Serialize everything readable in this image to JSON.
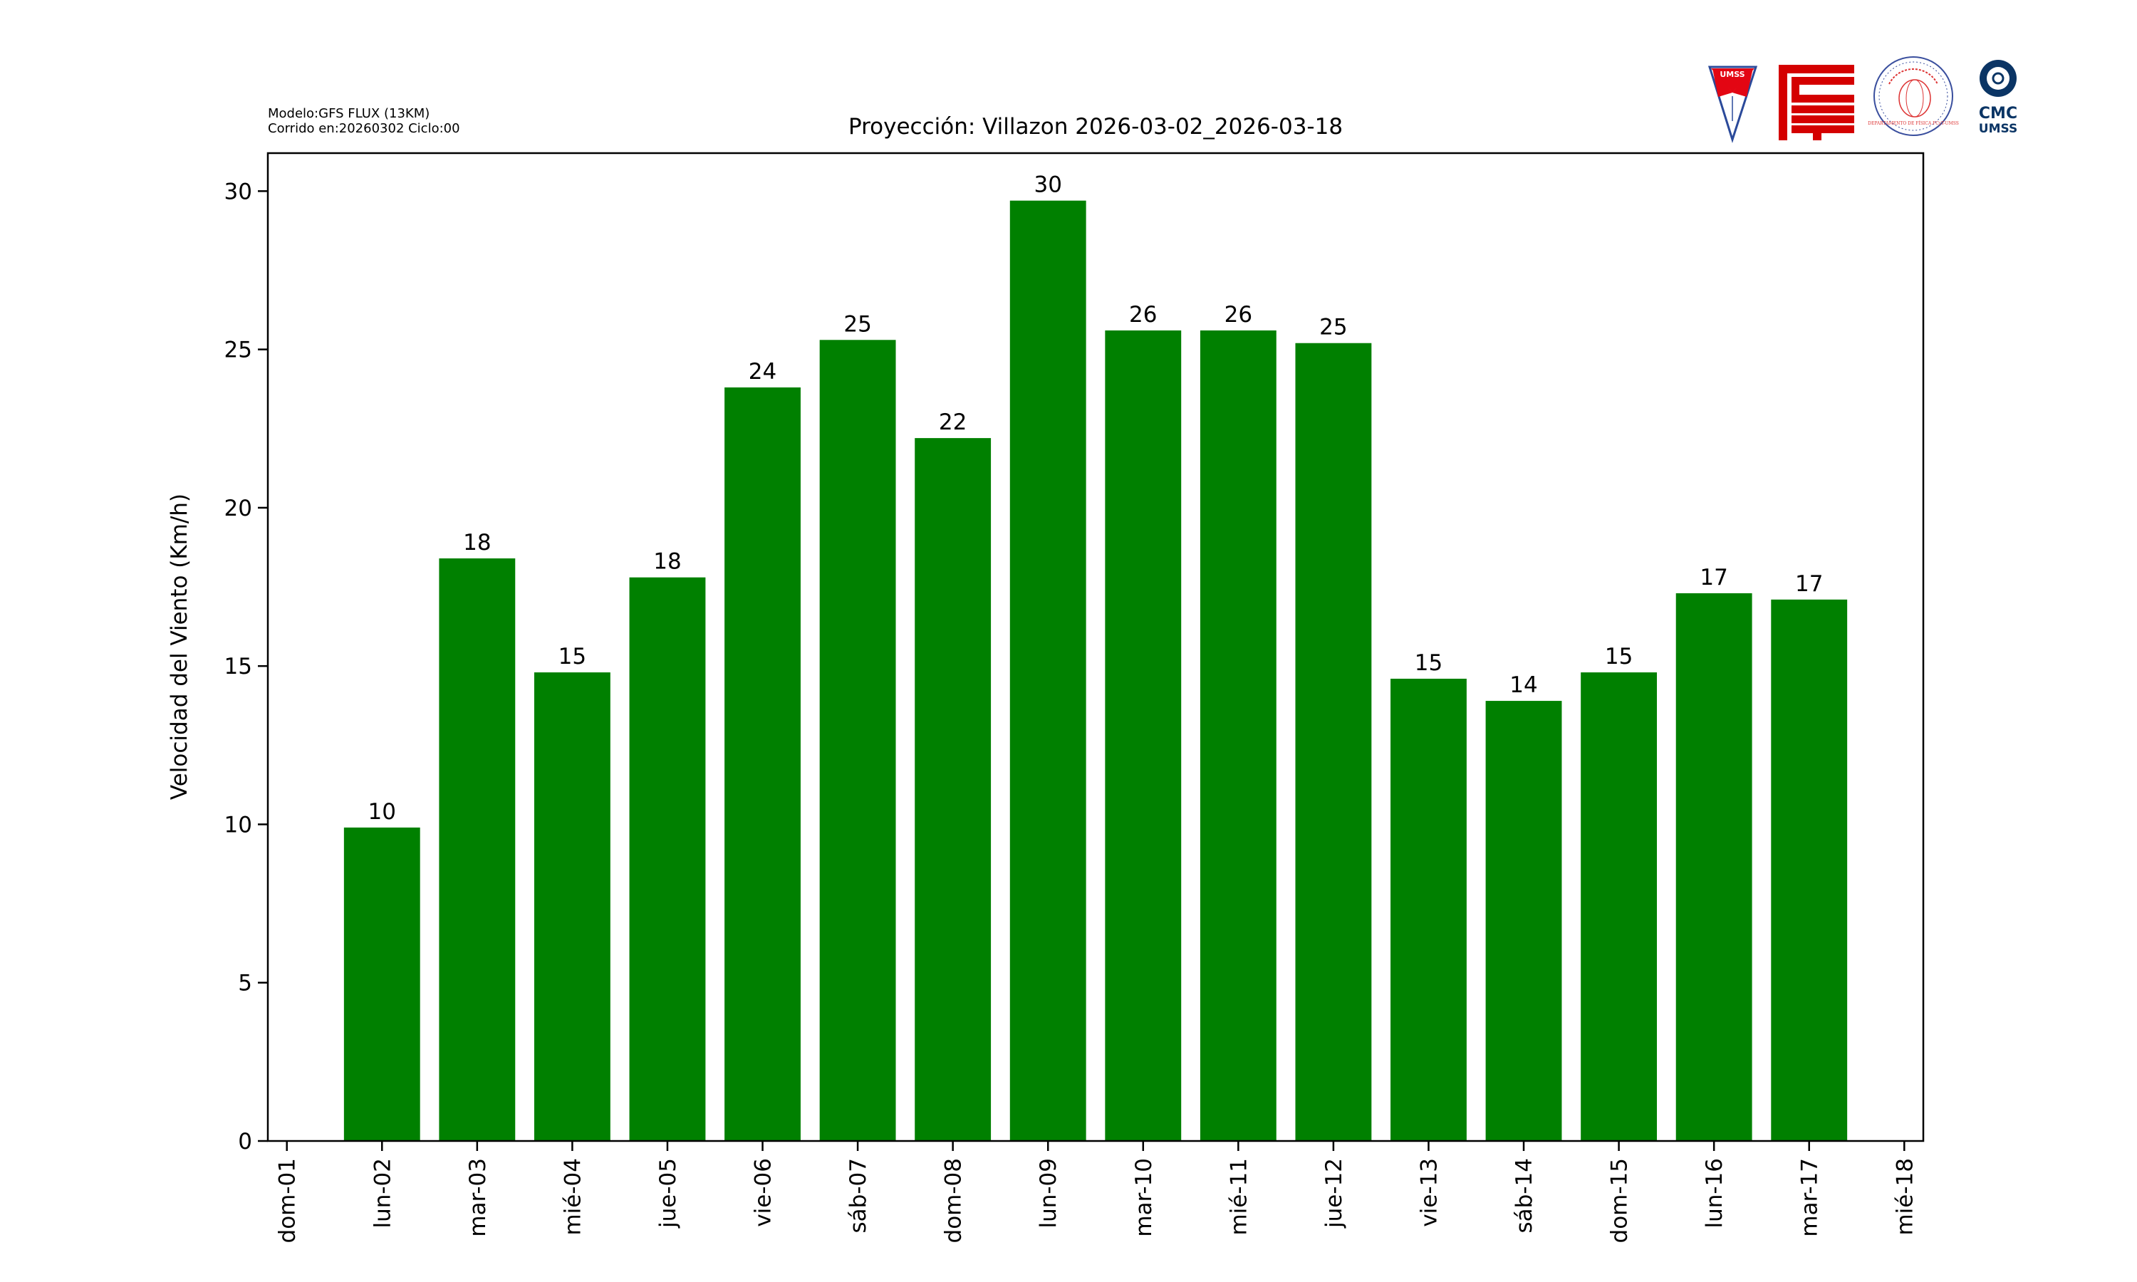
{
  "header": {
    "model_line": "Modelo:GFS FLUX (13KM)",
    "run_line": "Corrido en:20260302 Ciclo:00"
  },
  "logos": {
    "umss": "UMSS",
    "fcyt": "FCyT",
    "dept": "DEPARTAMENTO DE FÍSICA FCyT-UMSS",
    "cmc_line1": "CMC",
    "cmc_line2": "UMSS"
  },
  "colors": {
    "bar": "#008000",
    "axis": "#000000",
    "umss_red": "#e30613",
    "navy": "#0b3565",
    "seal_blue": "#3a4f9e"
  },
  "chart_data": {
    "type": "bar",
    "title": "Proyección: Villazon  2026-03-02_2026-03-18",
    "xlabel": "",
    "ylabel": "Velocidad del Viento (Km/h)",
    "ylim": [
      0,
      31.2
    ],
    "xlim_days": [
      -0.2,
      17.2
    ],
    "yticks": [
      0,
      5,
      10,
      15,
      20,
      25,
      30
    ],
    "xtick_labels": [
      "dom-01",
      "lun-02",
      "mar-03",
      "mié-04",
      "jue-05",
      "vie-06",
      "sáb-07",
      "dom-08",
      "lun-09",
      "mar-10",
      "mié-11",
      "jue-12",
      "vie-13",
      "sáb-14",
      "dom-15",
      "lun-16",
      "mar-17",
      "mié-18"
    ],
    "categories": [
      "lun-02",
      "mar-03",
      "mié-04",
      "jue-05",
      "vie-06",
      "sáb-07",
      "dom-08",
      "lun-09",
      "mar-10",
      "mié-11",
      "jue-12",
      "vie-13",
      "sáb-14",
      "dom-15",
      "lun-16",
      "mar-17"
    ],
    "values": [
      9.9,
      18.4,
      14.8,
      17.8,
      23.8,
      25.3,
      22.2,
      29.7,
      25.6,
      25.6,
      25.2,
      14.6,
      13.9,
      14.8,
      17.3,
      17.1
    ],
    "data_labels": [
      "10",
      "18",
      "15",
      "18",
      "24",
      "25",
      "22",
      "30",
      "26",
      "26",
      "25",
      "15",
      "14",
      "15",
      "17",
      "17"
    ],
    "grid": false,
    "legend": "none"
  }
}
